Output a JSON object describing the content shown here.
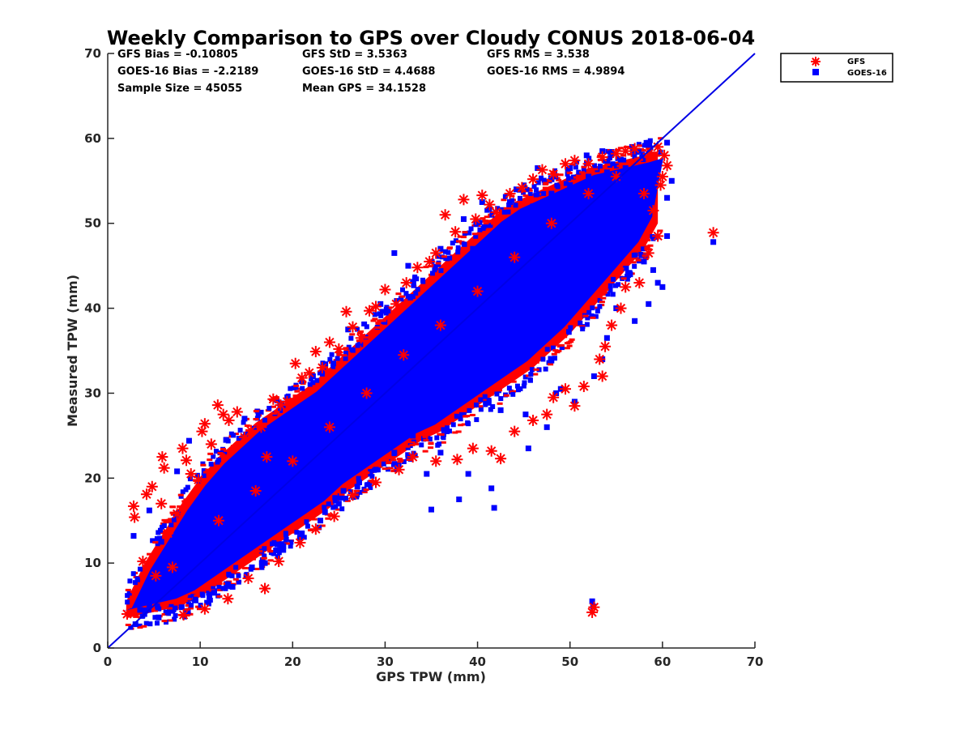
{
  "chart_data": {
    "type": "scatter",
    "title": "Weekly Comparison to GPS over Cloudy CONUS 2018-06-04",
    "xlabel": "GPS TPW (mm)",
    "ylabel": "Measured TPW (mm)",
    "xlim": [
      0,
      70
    ],
    "ylim": [
      0,
      70
    ],
    "xticks": [
      "0",
      "10",
      "20",
      "30",
      "40",
      "50",
      "60",
      "70"
    ],
    "yticks": [
      "0",
      "10",
      "20",
      "30",
      "40",
      "50",
      "60",
      "70"
    ],
    "grid": false,
    "legend_position": "outside-top-right",
    "stats": [
      {
        "text": "GFS Bias = -0.10805"
      },
      {
        "text": "GFS StD = 3.5363"
      },
      {
        "text": "GFS RMS = 3.538"
      },
      {
        "text": "GOES-16 Bias = -2.2189"
      },
      {
        "text": "GOES-16 StD = 4.4688"
      },
      {
        "text": "GOES-16 RMS = 4.9894"
      },
      {
        "text": "Sample Size = 45055"
      },
      {
        "text": "Mean GPS = 34.1528"
      }
    ],
    "reference_line": {
      "x": [
        0,
        70
      ],
      "y": [
        0,
        70
      ],
      "color": "#0000e6"
    },
    "series": [
      {
        "name": "GFS",
        "marker": "asterisk",
        "color": "#ff0000",
        "points": [
          [
            2.1,
            4.0
          ],
          [
            2.8,
            16.7
          ],
          [
            2.9,
            15.4
          ],
          [
            3.8,
            10.2
          ],
          [
            4.2,
            18.1
          ],
          [
            4.8,
            19.0
          ],
          [
            5.2,
            8.5
          ],
          [
            5.9,
            22.5
          ],
          [
            6.1,
            21.2
          ],
          [
            5.8,
            17.0
          ],
          [
            6.5,
            13.5
          ],
          [
            7.0,
            9.5
          ],
          [
            7.5,
            15.8
          ],
          [
            8.1,
            23.5
          ],
          [
            8.5,
            22.1
          ],
          [
            9.0,
            20.5
          ],
          [
            9.8,
            19.8
          ],
          [
            10.2,
            25.5
          ],
          [
            10.5,
            26.4
          ],
          [
            11.2,
            24.0
          ],
          [
            11.9,
            28.6
          ],
          [
            12.5,
            27.5
          ],
          [
            13.1,
            26.8
          ],
          [
            14.0,
            27.8
          ],
          [
            14.8,
            24.8
          ],
          [
            15.5,
            25.6
          ],
          [
            16.6,
            26.0
          ],
          [
            17.2,
            22.5
          ],
          [
            17.9,
            29.3
          ],
          [
            18.7,
            28.6
          ],
          [
            19.4,
            29.0
          ],
          [
            20.3,
            33.5
          ],
          [
            21.0,
            31.8
          ],
          [
            21.8,
            32.4
          ],
          [
            22.5,
            34.9
          ],
          [
            23.2,
            33.0
          ],
          [
            24.0,
            36.0
          ],
          [
            25.0,
            35.2
          ],
          [
            25.8,
            39.6
          ],
          [
            26.5,
            37.8
          ],
          [
            27.4,
            36.5
          ],
          [
            28.3,
            39.7
          ],
          [
            29.0,
            40.2
          ],
          [
            30.0,
            42.2
          ],
          [
            31.2,
            40.5
          ],
          [
            32.3,
            43.0
          ],
          [
            33.5,
            44.8
          ],
          [
            34.8,
            45.5
          ],
          [
            35.5,
            46.5
          ],
          [
            36.5,
            51.0
          ],
          [
            37.6,
            49.0
          ],
          [
            38.5,
            52.8
          ],
          [
            39.8,
            50.5
          ],
          [
            40.5,
            53.3
          ],
          [
            41.3,
            52.2
          ],
          [
            42.0,
            51.3
          ],
          [
            43.5,
            53.5
          ],
          [
            44.8,
            54.2
          ],
          [
            46.0,
            55.2
          ],
          [
            47.0,
            56.3
          ],
          [
            48.2,
            55.8
          ],
          [
            49.5,
            57.0
          ],
          [
            50.5,
            57.4
          ],
          [
            52.0,
            57.0
          ],
          [
            53.5,
            57.8
          ],
          [
            55.0,
            58.2
          ],
          [
            56.0,
            58.5
          ],
          [
            57.0,
            58.8
          ],
          [
            58.5,
            58.2
          ],
          [
            59.5,
            59.0
          ],
          [
            60.2,
            58.0
          ],
          [
            60.0,
            55.5
          ],
          [
            59.8,
            54.5
          ],
          [
            60.5,
            56.8
          ],
          [
            65.5,
            48.9
          ],
          [
            52.4,
            4.2
          ],
          [
            52.6,
            4.8
          ],
          [
            8.2,
            3.9
          ],
          [
            10.5,
            4.6
          ],
          [
            13.0,
            5.8
          ],
          [
            15.2,
            8.2
          ],
          [
            17.0,
            7.0
          ],
          [
            18.5,
            10.2
          ],
          [
            20.8,
            12.4
          ],
          [
            22.5,
            14.0
          ],
          [
            24.5,
            15.5
          ],
          [
            26.5,
            18.0
          ],
          [
            29.0,
            19.5
          ],
          [
            31.5,
            21.0
          ],
          [
            33.0,
            22.5
          ],
          [
            35.5,
            22.0
          ],
          [
            37.8,
            22.2
          ],
          [
            39.5,
            23.5
          ],
          [
            41.5,
            23.2
          ],
          [
            42.5,
            22.3
          ],
          [
            44.0,
            25.5
          ],
          [
            46.0,
            26.8
          ],
          [
            47.5,
            27.5
          ],
          [
            48.2,
            29.5
          ],
          [
            49.5,
            30.5
          ],
          [
            50.5,
            28.5
          ],
          [
            51.5,
            30.8
          ],
          [
            53.2,
            34.0
          ],
          [
            53.8,
            35.5
          ],
          [
            53.5,
            32.0
          ],
          [
            54.5,
            38.0
          ],
          [
            55.5,
            40.0
          ],
          [
            56.0,
            42.5
          ],
          [
            57.5,
            43.0
          ],
          [
            58.5,
            46.5
          ],
          [
            59.5,
            48.5
          ],
          [
            59.0,
            51.5
          ],
          [
            58.0,
            53.5
          ],
          [
            12.0,
            15.0
          ],
          [
            16.0,
            18.5
          ],
          [
            20.0,
            22.0
          ],
          [
            24.0,
            26.0
          ],
          [
            28.0,
            30.0
          ],
          [
            32.0,
            34.5
          ],
          [
            36.0,
            38.0
          ],
          [
            40.0,
            42.0
          ],
          [
            44.0,
            46.0
          ],
          [
            48.0,
            50.0
          ],
          [
            52.0,
            53.5
          ],
          [
            55.0,
            55.5
          ]
        ]
      },
      {
        "name": "GOES-16",
        "marker": "square",
        "color": "#0000ff",
        "points": [
          [
            2.8,
            13.2
          ],
          [
            3.0,
            2.8
          ],
          [
            4.5,
            16.2
          ],
          [
            5.8,
            12.5
          ],
          [
            6.4,
            8.0
          ],
          [
            7.5,
            20.8
          ],
          [
            8.8,
            24.4
          ],
          [
            9.2,
            11.0
          ],
          [
            11.5,
            6.5
          ],
          [
            12.8,
            24.5
          ],
          [
            13.5,
            7.2
          ],
          [
            14.8,
            27.0
          ],
          [
            15.6,
            9.5
          ],
          [
            17.2,
            22.6
          ],
          [
            18.2,
            11.5
          ],
          [
            18.8,
            28.8
          ],
          [
            20.8,
            13.0
          ],
          [
            22.2,
            32.0
          ],
          [
            23.5,
            16.0
          ],
          [
            24.4,
            33.5
          ],
          [
            25.5,
            18.5
          ],
          [
            26.0,
            37.5
          ],
          [
            27.2,
            19.5
          ],
          [
            29.5,
            40.5
          ],
          [
            31.0,
            46.5
          ],
          [
            32.5,
            45.0
          ],
          [
            34.5,
            20.5
          ],
          [
            36.0,
            23.0
          ],
          [
            36.0,
            47.0
          ],
          [
            38.0,
            17.5
          ],
          [
            38.5,
            50.5
          ],
          [
            39.5,
            47.0
          ],
          [
            40.5,
            52.5
          ],
          [
            41.8,
            16.5
          ],
          [
            42.5,
            28.0
          ],
          [
            43.5,
            52.5
          ],
          [
            44.2,
            54.0
          ],
          [
            45.2,
            27.5
          ],
          [
            46.5,
            56.5
          ],
          [
            48.5,
            30.0
          ],
          [
            50.0,
            56.5
          ],
          [
            50.5,
            29.0
          ],
          [
            51.8,
            58.0
          ],
          [
            52.6,
            32.0
          ],
          [
            52.4,
            5.5
          ],
          [
            52.5,
            4.9
          ],
          [
            53.5,
            58.5
          ],
          [
            54.0,
            36.5
          ],
          [
            55.0,
            40.0
          ],
          [
            55.5,
            57.5
          ],
          [
            56.5,
            44.0
          ],
          [
            57.5,
            54.0
          ],
          [
            58.5,
            52.5
          ],
          [
            59.5,
            43.0
          ],
          [
            60.0,
            42.5
          ],
          [
            60.5,
            53.0
          ],
          [
            60.5,
            48.5
          ],
          [
            61.0,
            55.0
          ],
          [
            59.5,
            57.0
          ],
          [
            58.0,
            45.5
          ],
          [
            65.5,
            47.8
          ],
          [
            60.5,
            59.5
          ],
          [
            35.0,
            16.3
          ],
          [
            39.0,
            20.5
          ],
          [
            41.5,
            18.8
          ],
          [
            45.5,
            23.5
          ],
          [
            47.5,
            26.0
          ],
          [
            49.0,
            30.5
          ],
          [
            53.5,
            34.0
          ],
          [
            57.0,
            38.5
          ],
          [
            58.5,
            40.5
          ],
          [
            59.0,
            44.5
          ],
          [
            3.5,
            4.5
          ],
          [
            4.5,
            5.0
          ],
          [
            5.5,
            3.6
          ],
          [
            6.5,
            4.2
          ],
          [
            8.0,
            4.8
          ],
          [
            9.5,
            5.6
          ],
          [
            11.0,
            6.0
          ],
          [
            13.0,
            7.5
          ],
          [
            15.0,
            8.5
          ],
          [
            17.0,
            10.0
          ],
          [
            19.0,
            12.0
          ],
          [
            21.0,
            13.5
          ],
          [
            23.0,
            15.0
          ],
          [
            25.0,
            17.0
          ],
          [
            27.0,
            19.0
          ],
          [
            29.0,
            21.0
          ],
          [
            31.0,
            23.0
          ],
          [
            33.0,
            25.0
          ],
          [
            35.0,
            27.0
          ],
          [
            37.0,
            29.0
          ],
          [
            39.0,
            31.0
          ],
          [
            41.0,
            33.0
          ],
          [
            43.0,
            35.0
          ],
          [
            45.0,
            37.0
          ],
          [
            47.0,
            39.0
          ],
          [
            49.0,
            41.0
          ],
          [
            51.0,
            43.0
          ],
          [
            53.0,
            45.0
          ],
          [
            55.0,
            47.0
          ],
          [
            57.0,
            49.0
          ],
          [
            58.5,
            51.0
          ],
          [
            6.0,
            10.0
          ],
          [
            8.0,
            13.0
          ],
          [
            10.0,
            16.0
          ],
          [
            12.0,
            18.5
          ],
          [
            14.0,
            20.5
          ],
          [
            16.0,
            22.0
          ],
          [
            18.0,
            24.0
          ],
          [
            20.0,
            26.0
          ],
          [
            22.0,
            28.0
          ],
          [
            24.0,
            30.0
          ],
          [
            26.0,
            32.0
          ],
          [
            28.0,
            34.0
          ],
          [
            30.0,
            36.0
          ],
          [
            32.0,
            38.0
          ],
          [
            34.0,
            40.0
          ],
          [
            36.0,
            42.0
          ],
          [
            38.0,
            44.0
          ],
          [
            40.0,
            46.0
          ],
          [
            42.0,
            48.0
          ],
          [
            44.0,
            50.0
          ],
          [
            46.0,
            52.0
          ],
          [
            48.0,
            53.5
          ],
          [
            50.0,
            54.5
          ],
          [
            52.0,
            55.5
          ],
          [
            54.0,
            56.0
          ],
          [
            56.0,
            56.5
          ],
          [
            57.0,
            55.0
          ],
          [
            58.0,
            56.5
          ]
        ]
      }
    ],
    "dense_band": [
      [
        2,
        3.5,
        5.5
      ],
      [
        4,
        4.0,
        10.0
      ],
      [
        6,
        4.5,
        13.5
      ],
      [
        8,
        5.0,
        17.0
      ],
      [
        10,
        6.0,
        20.0
      ],
      [
        12,
        7.5,
        22.5
      ],
      [
        14,
        9.0,
        24.5
      ],
      [
        16,
        10.5,
        26.5
      ],
      [
        18,
        12.0,
        28.0
      ],
      [
        20,
        13.5,
        29.5
      ],
      [
        22,
        15.0,
        31.0
      ],
      [
        24,
        16.5,
        33.0
      ],
      [
        26,
        18.5,
        35.0
      ],
      [
        28,
        20.0,
        37.0
      ],
      [
        30,
        21.5,
        39.0
      ],
      [
        32,
        23.0,
        41.0
      ],
      [
        34,
        24.5,
        43.0
      ],
      [
        36,
        25.5,
        45.0
      ],
      [
        38,
        27.0,
        47.0
      ],
      [
        40,
        28.5,
        49.0
      ],
      [
        42,
        30.0,
        51.0
      ],
      [
        44,
        31.5,
        52.5
      ],
      [
        46,
        33.0,
        53.5
      ],
      [
        48,
        35.0,
        54.5
      ],
      [
        50,
        37.0,
        55.5
      ],
      [
        52,
        39.5,
        56.5
      ],
      [
        54,
        42.0,
        57.0
      ],
      [
        56,
        44.5,
        57.5
      ],
      [
        58,
        47.0,
        58.0
      ],
      [
        59.5,
        50.0,
        58.5
      ]
    ]
  }
}
